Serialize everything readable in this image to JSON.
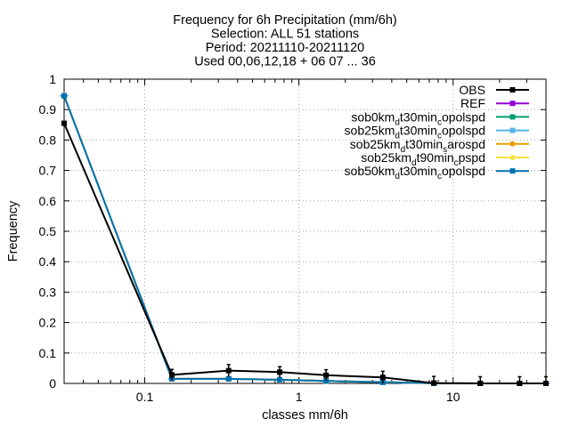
{
  "chart_data": {
    "type": "line",
    "title_lines": [
      "Frequency  for 6h Precipitation (mm/6h)",
      "Selection: ALL     51 stations",
      "Period: 20211110-20211120",
      "Used 00,06,12,18 + 06 07 ... 36"
    ],
    "xlabel": "classes mm/6h",
    "ylabel": "Frequency",
    "x_scale": "log",
    "xlim": [
      0.03,
      40
    ],
    "ylim": [
      0,
      1
    ],
    "grid": true,
    "legend_position": "top-right",
    "x_ticks": [
      {
        "value": 0.1,
        "label": "0.1"
      },
      {
        "value": 1,
        "label": "1"
      },
      {
        "value": 10,
        "label": "10"
      }
    ],
    "y_ticks": [
      {
        "value": 0,
        "label": "0"
      },
      {
        "value": 0.1,
        "label": "0.1"
      },
      {
        "value": 0.2,
        "label": "0.2"
      },
      {
        "value": 0.3,
        "label": "0.3"
      },
      {
        "value": 0.4,
        "label": "0.4"
      },
      {
        "value": 0.5,
        "label": "0.5"
      },
      {
        "value": 0.6,
        "label": "0.6"
      },
      {
        "value": 0.7,
        "label": "0.7"
      },
      {
        "value": 0.8,
        "label": "0.8"
      },
      {
        "value": 0.9,
        "label": "0.9"
      },
      {
        "value": 1,
        "label": "1"
      }
    ],
    "x": [
      0.03,
      0.15,
      0.35,
      0.75,
      1.5,
      3.5,
      7.5,
      15,
      27,
      40
    ],
    "series": [
      {
        "name": "OBS",
        "name_parts": [
          {
            "t": "OBS",
            "s": ""
          }
        ],
        "color": "#000000",
        "marker": "cross",
        "values": [
          0.855,
          0.028,
          0.042,
          0.037,
          0.027,
          0.02,
          0.001,
          0.0,
          0.0,
          0.0
        ],
        "error": [
          null,
          0.018,
          0.02,
          0.018,
          0.018,
          0.02,
          0.022,
          0.022,
          0.022,
          0.022
        ]
      },
      {
        "name": "REF",
        "name_parts": [
          {
            "t": "REF",
            "s": ""
          }
        ],
        "color": "#9400d3",
        "marker": "square",
        "values": [
          0.945,
          0.015,
          0.015,
          0.012,
          0.008,
          0.004,
          0.001,
          0.0,
          0.0,
          0.0
        ]
      },
      {
        "name": "sob0km_dt30min_copolspd",
        "name_parts": [
          {
            "t": "sob0km",
            "s": ""
          },
          {
            "t": "d",
            "s": "sub"
          },
          {
            "t": "t30min",
            "s": ""
          },
          {
            "t": "c",
            "s": "sub"
          },
          {
            "t": "opolspd",
            "s": ""
          }
        ],
        "color": "#009e73",
        "marker": "square",
        "values": [
          0.945,
          0.015,
          0.015,
          0.012,
          0.008,
          0.004,
          0.001,
          0.0,
          0.0,
          0.0
        ]
      },
      {
        "name": "sob25km_dt30min_copolspd",
        "name_parts": [
          {
            "t": "sob25km",
            "s": ""
          },
          {
            "t": "d",
            "s": "sub"
          },
          {
            "t": "t30min",
            "s": ""
          },
          {
            "t": "c",
            "s": "sub"
          },
          {
            "t": "opolspd",
            "s": ""
          }
        ],
        "color": "#56b4e9",
        "marker": "square",
        "values": [
          0.945,
          0.015,
          0.015,
          0.012,
          0.008,
          0.004,
          0.001,
          0.0,
          0.0,
          0.0
        ]
      },
      {
        "name": "sob25km_dt30min_sarospd",
        "name_parts": [
          {
            "t": "sob25km",
            "s": ""
          },
          {
            "t": "d",
            "s": "sub"
          },
          {
            "t": "t30min",
            "s": ""
          },
          {
            "t": "s",
            "s": "sub"
          },
          {
            "t": "arospd",
            "s": ""
          }
        ],
        "color": "#e69f00",
        "marker": "circle",
        "values": [
          0.945,
          0.015,
          0.015,
          0.012,
          0.008,
          0.004,
          0.001,
          0.0,
          0.0,
          0.0
        ]
      },
      {
        "name": "sob25km_dt90min_cpspd",
        "name_parts": [
          {
            "t": "sob25km",
            "s": ""
          },
          {
            "t": "d",
            "s": "sub"
          },
          {
            "t": "t90min",
            "s": ""
          },
          {
            "t": "c",
            "s": "sub"
          },
          {
            "t": "pspd",
            "s": ""
          }
        ],
        "color": "#f0e442",
        "marker": "circle",
        "values": [
          0.945,
          0.015,
          0.015,
          0.012,
          0.008,
          0.004,
          0.001,
          0.0,
          0.0,
          0.0
        ]
      },
      {
        "name": "sob50km_dt30min_copolspd",
        "name_parts": [
          {
            "t": "sob50km",
            "s": ""
          },
          {
            "t": "d",
            "s": "sub"
          },
          {
            "t": "t30min",
            "s": ""
          },
          {
            "t": "c",
            "s": "sub"
          },
          {
            "t": "opolspd",
            "s": ""
          }
        ],
        "color": "#0072b2",
        "marker": "square",
        "values": [
          0.945,
          0.015,
          0.015,
          0.012,
          0.008,
          0.004,
          0.001,
          0.0,
          0.0,
          0.0
        ]
      }
    ]
  }
}
